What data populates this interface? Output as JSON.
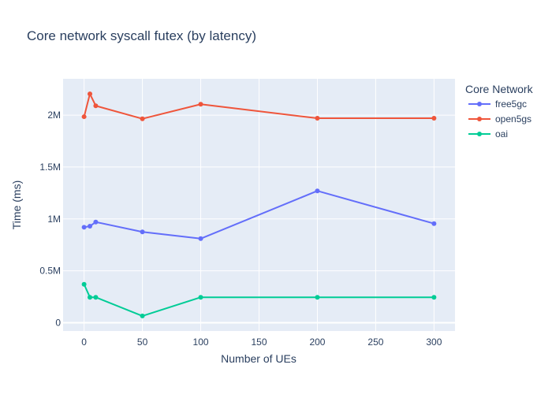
{
  "chart_data": {
    "type": "line",
    "title": "Core network syscall futex (by latency)",
    "xlabel": "Number of UEs",
    "ylabel": "Time (ms)",
    "xlim": [
      -18,
      318
    ],
    "ylim": [
      -80000,
      2350000
    ],
    "x_ticks": [
      0,
      50,
      100,
      150,
      200,
      250,
      300
    ],
    "x_tick_labels": [
      "0",
      "50",
      "100",
      "150",
      "200",
      "250",
      "300"
    ],
    "y_ticks": [
      0,
      500000,
      1000000,
      1500000,
      2000000
    ],
    "y_tick_labels": [
      "0",
      "0.5M",
      "1M",
      "1.5M",
      "2M"
    ],
    "grid": true,
    "legend_title": "Core Network",
    "legend_position": "right",
    "x": [
      0,
      5,
      10,
      50,
      100,
      200,
      300
    ],
    "series": [
      {
        "name": "free5gc",
        "color": "#636efa",
        "values": [
          920000,
          930000,
          970000,
          875000,
          810000,
          1270000,
          955000
        ]
      },
      {
        "name": "open5gs",
        "color": "#ef553b",
        "values": [
          1985000,
          2205000,
          2090000,
          1965000,
          2105000,
          1970000,
          1970000
        ]
      },
      {
        "name": "oai",
        "color": "#00cc96",
        "values": [
          370000,
          245000,
          245000,
          65000,
          245000,
          245000,
          245000
        ]
      }
    ]
  }
}
